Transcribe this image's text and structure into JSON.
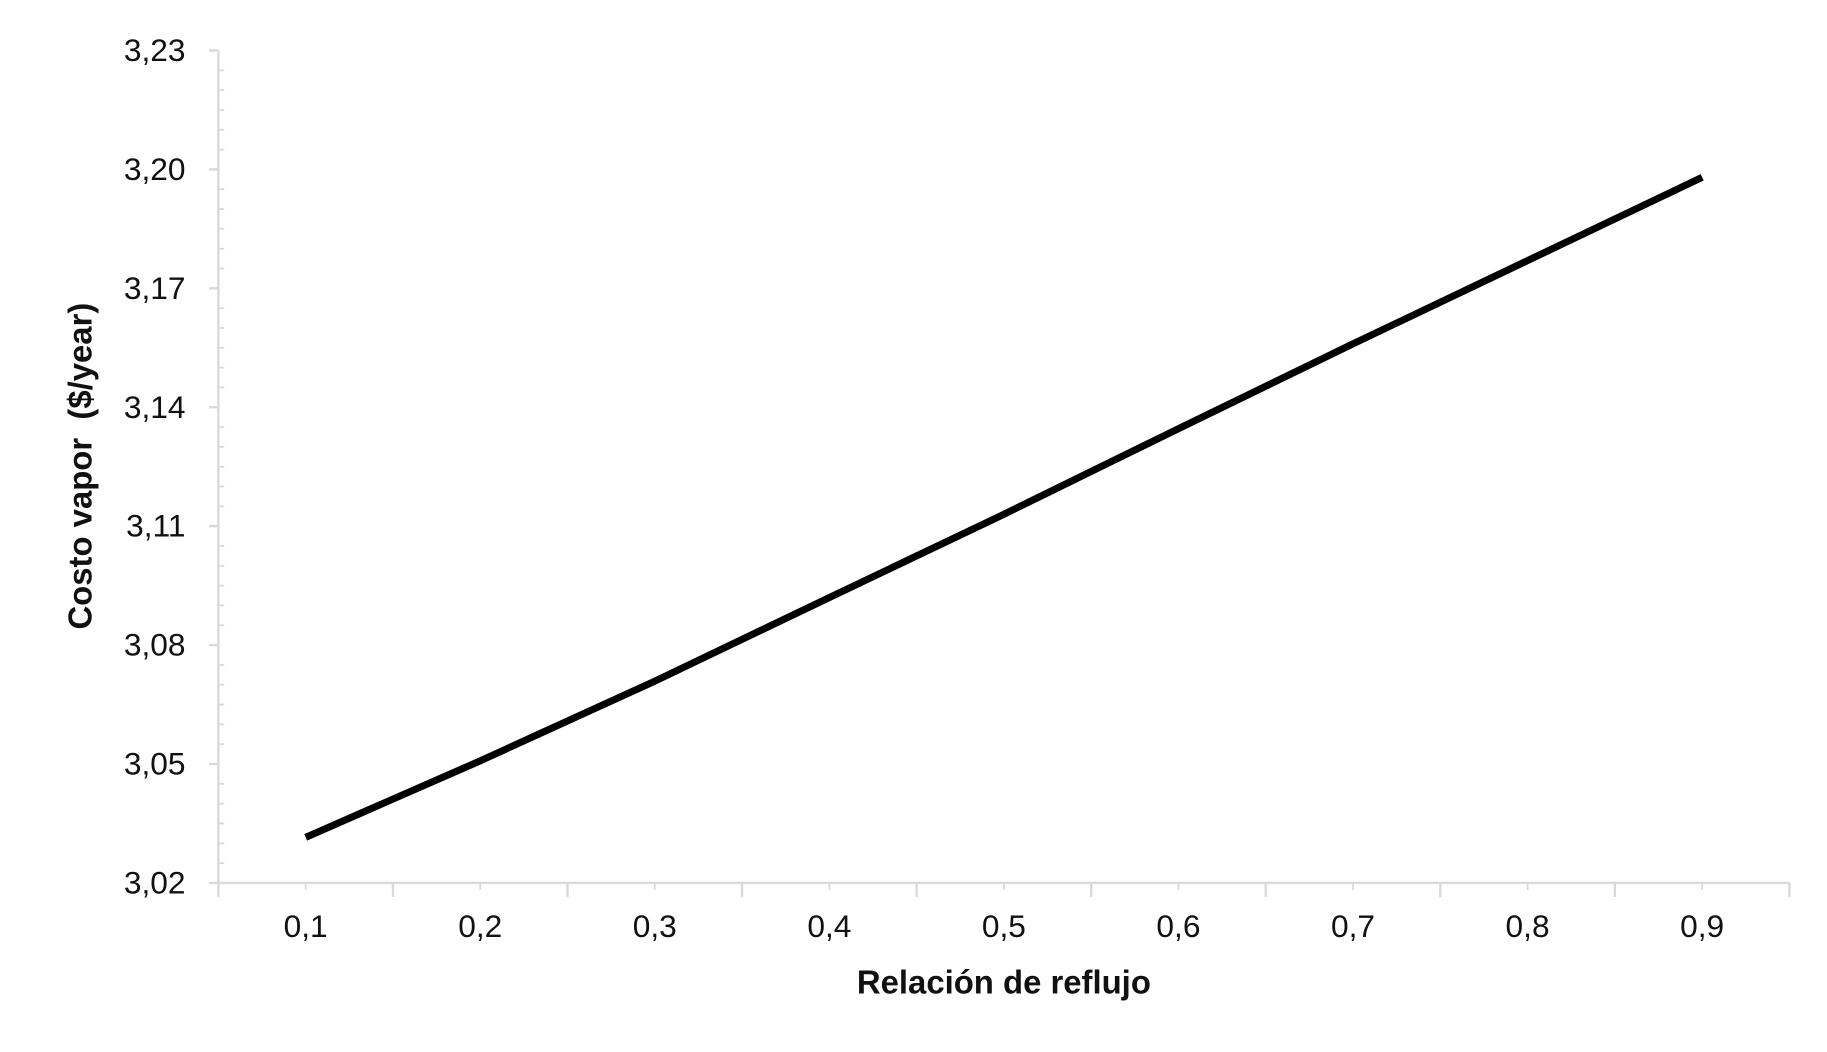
{
  "chart_data": {
    "type": "line",
    "title": "",
    "xlabel": "Relación de reflujo",
    "ylabel": "Costo vapor  ($/year)",
    "x": [
      0.1,
      0.2,
      0.3,
      0.4,
      0.5,
      0.6,
      0.7,
      0.8,
      0.9
    ],
    "x_tick_labels": [
      "0,1",
      "0,2",
      "0,3",
      "0,4",
      "0,5",
      "0,6",
      "0,7",
      "0,8",
      "0,9"
    ],
    "series": [
      {
        "values": [
          3.0315,
          3.0508,
          3.0709,
          3.092,
          3.113,
          3.1346,
          3.156,
          3.177,
          3.198
        ],
        "color": "#000000"
      }
    ],
    "ylim": [
      3.02,
      3.23
    ],
    "y_ticks": [
      3.02,
      3.05,
      3.08,
      3.11,
      3.14,
      3.17,
      3.2,
      3.23
    ],
    "y_tick_labels": [
      "3,02",
      "3,05",
      "3,08",
      "3,11",
      "3,14",
      "3,17",
      "3,20",
      "3,23"
    ],
    "xlim": [
      0.05,
      0.95
    ],
    "grid": false,
    "axis_color": "#d9d9d9"
  }
}
